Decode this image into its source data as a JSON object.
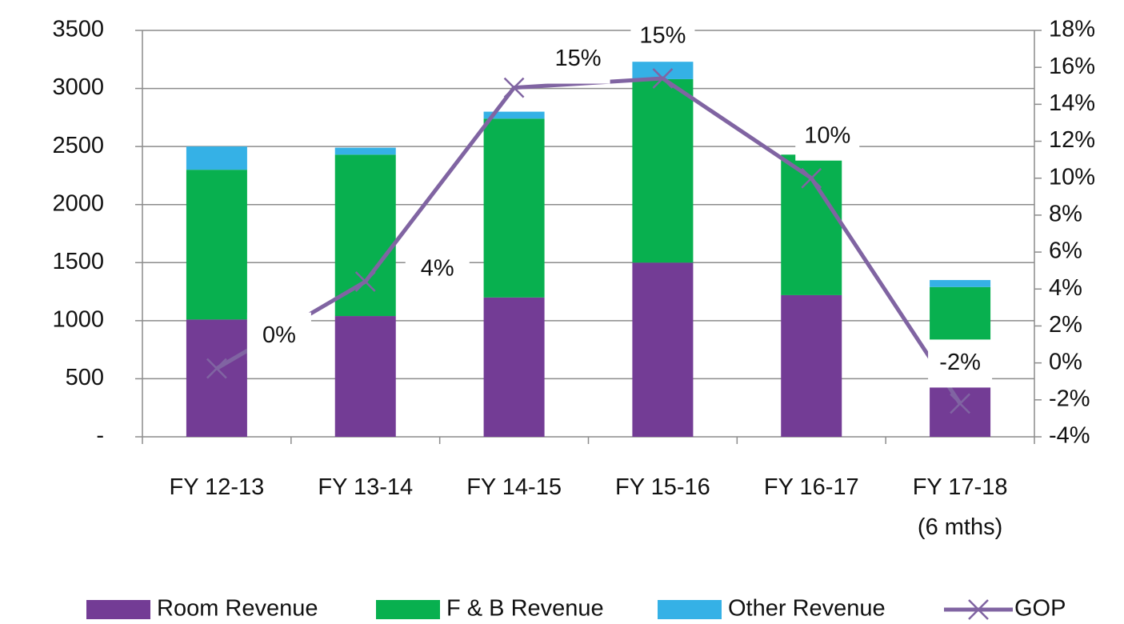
{
  "chart_data": {
    "type": "bar",
    "categories": [
      "FY 12-13",
      "FY 13-14",
      "FY 14-15",
      "FY 15-16",
      "FY 16-17",
      "FY 17-18\n(6 mths)"
    ],
    "stacked": true,
    "series": [
      {
        "name": "Room Revenue",
        "color": "#733c95",
        "values": [
          1010,
          1040,
          1200,
          1500,
          1220,
          600
        ]
      },
      {
        "name": "F & B Revenue",
        "color": "#08b04f",
        "values": [
          1290,
          1390,
          1540,
          1580,
          1210,
          690
        ]
      },
      {
        "name": "Other Revenue",
        "color": "#35b1e6",
        "values": [
          200,
          60,
          60,
          150,
          0,
          60
        ]
      },
      {
        "name": "GOP",
        "color": "#8064a2",
        "type": "line",
        "axis": "y2",
        "marker": "x",
        "values": [
          -0.3,
          4.4,
          14.9,
          15.4,
          10.0,
          -2.2
        ],
        "value_labels": [
          "0%",
          "4%",
          "15%",
          "15%",
          "10%",
          "-2%"
        ]
      }
    ],
    "ylim": [
      0,
      3500
    ],
    "yticks": [
      {
        "value": 0,
        "label": "-"
      },
      500,
      1000,
      1500,
      2000,
      2500,
      3000,
      3500
    ],
    "y2lim": [
      -4,
      18
    ],
    "y2ticks": [
      {
        "value": -4,
        "label": "-4%"
      },
      {
        "value": -2,
        "label": "-2%"
      },
      {
        "value": 0,
        "label": "0%"
      },
      {
        "value": 2,
        "label": "2%"
      },
      {
        "value": 4,
        "label": "4%"
      },
      {
        "value": 6,
        "label": "6%"
      },
      {
        "value": 8,
        "label": "8%"
      },
      {
        "value": 10,
        "label": "10%"
      },
      {
        "value": 12,
        "label": "12%"
      },
      {
        "value": 14,
        "label": "14%"
      },
      {
        "value": 16,
        "label": "16%"
      },
      {
        "value": 18,
        "label": "18%"
      }
    ],
    "grid": true,
    "legend": "bottom"
  }
}
